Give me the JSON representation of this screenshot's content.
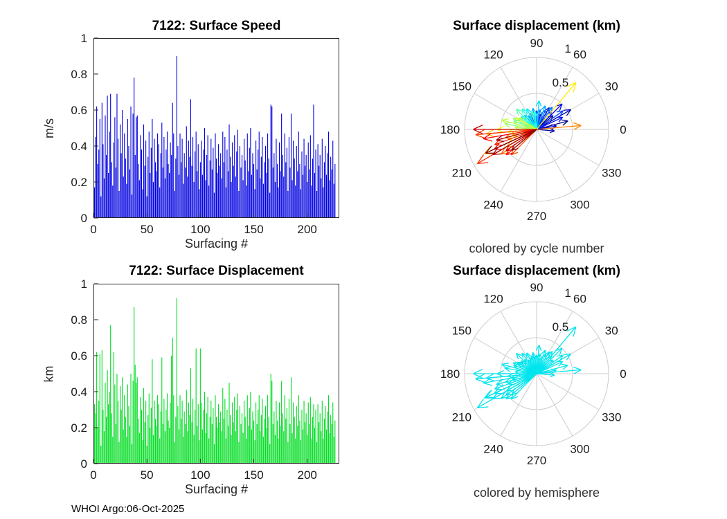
{
  "figure": {
    "footer": "WHOI Argo:06-Oct-2025",
    "background": "#ffffff"
  },
  "chart_data": [
    {
      "id": "speed",
      "type": "bar",
      "title": "7122: Surface Speed",
      "xlabel": "Surfacing #",
      "ylabel": "m/s",
      "xlim": [
        0,
        230
      ],
      "ylim": [
        0,
        1
      ],
      "xticks": [
        0,
        50,
        100,
        150,
        200
      ],
      "yticks": [
        0,
        0.2,
        0.4,
        0.6,
        0.8,
        1
      ],
      "grid": false,
      "bar_color": "#0000e0",
      "values": [
        0.17,
        0.45,
        0.62,
        0.3,
        0.38,
        0.55,
        0.12,
        0.64,
        0.41,
        0.22,
        0.57,
        0.35,
        0.68,
        0.25,
        0.48,
        0.69,
        0.31,
        0.18,
        0.42,
        0.56,
        0.28,
        0.69,
        0.44,
        0.15,
        0.52,
        0.36,
        0.6,
        0.23,
        0.47,
        0.33,
        0.19,
        0.55,
        0.4,
        0.27,
        0.62,
        0.13,
        0.58,
        0.78,
        0.35,
        0.56,
        0.57,
        0.3,
        0.21,
        0.46,
        0.38,
        0.16,
        0.52,
        0.29,
        0.43,
        0.12,
        0.34,
        0.48,
        0.25,
        0.39,
        0.55,
        0.2,
        0.44,
        0.31,
        0.26,
        0.47,
        0.41,
        0.17,
        0.36,
        0.53,
        0.28,
        0.45,
        0.22,
        0.38,
        0.48,
        0.3,
        0.25,
        0.42,
        0.35,
        0.64,
        0.47,
        0.15,
        0.33,
        0.9,
        0.4,
        0.24,
        0.47,
        0.31,
        0.44,
        0.19,
        0.36,
        0.28,
        0.51,
        0.23,
        0.43,
        0.34,
        0.66,
        0.29,
        0.45,
        0.2,
        0.37,
        0.48,
        0.26,
        0.41,
        0.16,
        0.31,
        0.43,
        0.24,
        0.38,
        0.5,
        0.21,
        0.35,
        0.46,
        0.18,
        0.32,
        0.44,
        0.27,
        0.39,
        0.14,
        0.47,
        0.33,
        0.25,
        0.41,
        0.29,
        0.36,
        0.22,
        0.48,
        0.31,
        0.45,
        0.17,
        0.38,
        0.26,
        0.52,
        0.34,
        0.2,
        0.42,
        0.29,
        0.46,
        0.23,
        0.37,
        0.49,
        0.15,
        0.4,
        0.28,
        0.35,
        0.21,
        0.44,
        0.32,
        0.18,
        0.47,
        0.26,
        0.39,
        0.5,
        0.24,
        0.36,
        0.3,
        0.16,
        0.43,
        0.27,
        0.38,
        0.48,
        0.22,
        0.34,
        0.45,
        0.19,
        0.31,
        0.4,
        0.25,
        0.47,
        0.33,
        0.14,
        0.63,
        0.62,
        0.28,
        0.36,
        0.2,
        0.44,
        0.3,
        0.17,
        0.42,
        0.26,
        0.58,
        0.35,
        0.23,
        0.47,
        0.31,
        0.39,
        0.15,
        0.45,
        0.28,
        0.58,
        0.21,
        0.43,
        0.33,
        0.18,
        0.4,
        0.26,
        0.48,
        0.3,
        0.16,
        0.37,
        0.24,
        0.44,
        0.29,
        0.35,
        0.2,
        0.42,
        0.27,
        0.46,
        0.18,
        0.33,
        0.63,
        0.25,
        0.38,
        0.15,
        0.41,
        0.29,
        0.35,
        0.22,
        0.44,
        0.17,
        0.31,
        0.4,
        0.24,
        0.36,
        0.48,
        0.21,
        0.34,
        0.27,
        0.43,
        0.19,
        0.3
      ]
    },
    {
      "id": "polar-cycle",
      "type": "polar-quiver",
      "title": "Surface displacement (km)",
      "caption": "colored by cycle number",
      "rmax": 1,
      "rticks": [
        0.5,
        1
      ],
      "angle_ticks": [
        0,
        30,
        60,
        90,
        120,
        150,
        180,
        210,
        240,
        270,
        300,
        330
      ],
      "color_mode": "jet",
      "grid_color": "#cccccc"
    },
    {
      "id": "displacement",
      "type": "bar",
      "title": "7122: Surface Displacement",
      "xlabel": "Surfacing #",
      "ylabel": "km",
      "xlim": [
        0,
        230
      ],
      "ylim": [
        0,
        1
      ],
      "xticks": [
        0,
        50,
        100,
        150,
        200
      ],
      "yticks": [
        0,
        0.2,
        0.4,
        0.6,
        0.8,
        1
      ],
      "grid": false,
      "bar_color": "#00dd22",
      "values": [
        0.33,
        0.28,
        0.62,
        0.2,
        0.35,
        0.61,
        0.1,
        0.63,
        0.3,
        0.18,
        0.45,
        0.26,
        0.52,
        0.33,
        0.4,
        0.77,
        0.28,
        0.15,
        0.62,
        0.44,
        0.22,
        0.5,
        0.35,
        0.12,
        0.43,
        0.3,
        0.48,
        0.19,
        0.38,
        0.26,
        0.15,
        0.44,
        0.32,
        0.21,
        0.5,
        0.11,
        0.46,
        0.87,
        0.55,
        0.45,
        0.48,
        0.25,
        0.17,
        0.37,
        0.3,
        0.13,
        0.42,
        0.23,
        0.35,
        0.1,
        0.27,
        0.39,
        0.2,
        0.31,
        0.58,
        0.16,
        0.35,
        0.25,
        0.21,
        0.38,
        0.33,
        0.14,
        0.29,
        0.59,
        0.22,
        0.36,
        0.18,
        0.3,
        0.39,
        0.24,
        0.2,
        0.34,
        0.6,
        0.7,
        0.38,
        0.12,
        0.26,
        0.92,
        0.32,
        0.19,
        0.38,
        0.25,
        0.35,
        0.15,
        0.29,
        0.22,
        0.41,
        0.18,
        0.34,
        0.27,
        0.53,
        0.23,
        0.36,
        0.16,
        0.3,
        0.64,
        0.21,
        0.33,
        0.13,
        0.64,
        0.34,
        0.19,
        0.3,
        0.4,
        0.17,
        0.28,
        0.37,
        0.14,
        0.26,
        0.35,
        0.22,
        0.31,
        0.11,
        0.38,
        0.26,
        0.2,
        0.33,
        0.23,
        0.29,
        0.18,
        0.42,
        0.25,
        0.36,
        0.14,
        0.3,
        0.21,
        0.45,
        0.27,
        0.16,
        0.34,
        0.23,
        0.37,
        0.18,
        0.3,
        0.39,
        0.12,
        0.32,
        0.22,
        0.28,
        0.17,
        0.35,
        0.26,
        0.14,
        0.38,
        0.21,
        0.31,
        0.4,
        0.19,
        0.29,
        0.24,
        0.13,
        0.34,
        0.22,
        0.3,
        0.38,
        0.18,
        0.27,
        0.36,
        0.15,
        0.25,
        0.32,
        0.2,
        0.38,
        0.26,
        0.11,
        0.5,
        0.46,
        0.22,
        0.29,
        0.16,
        0.35,
        0.24,
        0.14,
        0.34,
        0.21,
        0.46,
        0.28,
        0.18,
        0.38,
        0.25,
        0.31,
        0.12,
        0.36,
        0.22,
        0.48,
        0.17,
        0.34,
        0.26,
        0.14,
        0.32,
        0.21,
        0.38,
        0.24,
        0.13,
        0.3,
        0.19,
        0.35,
        0.23,
        0.28,
        0.16,
        0.34,
        0.22,
        0.37,
        0.14,
        0.26,
        0.33,
        0.2,
        0.3,
        0.12,
        0.33,
        0.23,
        0.28,
        0.18,
        0.35,
        0.14,
        0.25,
        0.32,
        0.19,
        0.29,
        0.38,
        0.17,
        0.27,
        0.22,
        0.34,
        0.15,
        0.24
      ]
    },
    {
      "id": "polar-hemisphere",
      "type": "polar-quiver",
      "title": "Surface displacement (km)",
      "caption": "colored by hemisphere",
      "rmax": 1,
      "rticks": [
        0.5,
        1
      ],
      "angle_ticks": [
        0,
        30,
        60,
        90,
        120,
        150,
        180,
        210,
        240,
        270,
        300,
        330
      ],
      "color_mode": "single",
      "single_color": "#00e5ee",
      "grid_color": "#cccccc"
    }
  ],
  "vectors": {
    "angles_deg": [
      15,
      40,
      355,
      30,
      60,
      10,
      45,
      75,
      25,
      50,
      90,
      35,
      65,
      110,
      55,
      80,
      120,
      70,
      100,
      130,
      85,
      115,
      140,
      95,
      125,
      150,
      105,
      135,
      160,
      145,
      170,
      155,
      175,
      165,
      185,
      150,
      180,
      195,
      50,
      200,
      185,
      210,
      190,
      205,
      5,
      215,
      195,
      225,
      185,
      210,
      200,
      220,
      190,
      205,
      215,
      180,
      210,
      195,
      220,
      205
    ],
    "radii_km": [
      0.45,
      0.3,
      0.25,
      0.55,
      0.35,
      0.28,
      0.5,
      0.22,
      0.4,
      0.32,
      0.26,
      0.45,
      0.3,
      0.24,
      0.38,
      0.28,
      0.22,
      0.35,
      0.3,
      0.26,
      0.4,
      0.32,
      0.28,
      0.24,
      0.35,
      0.3,
      0.26,
      0.4,
      0.34,
      0.28,
      0.45,
      0.36,
      0.3,
      0.5,
      0.4,
      0.32,
      0.55,
      0.35,
      0.85,
      0.42,
      0.7,
      0.48,
      0.36,
      0.8,
      0.62,
      0.6,
      0.45,
      0.5,
      0.85,
      0.95,
      0.62,
      0.55,
      0.75,
      0.65,
      0.52,
      0.88,
      0.7,
      0.58,
      0.45,
      0.78
    ]
  }
}
